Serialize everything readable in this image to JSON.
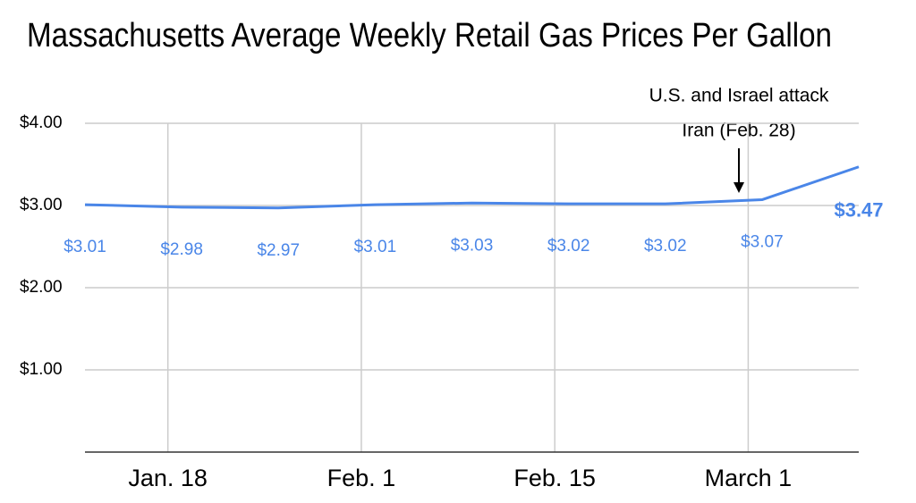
{
  "chart_data": {
    "type": "line",
    "title": "Massachusetts Average Weekly Retail Gas Prices Per Gallon",
    "annotation": [
      "U.S. and Israel attack",
      "Iran (Feb. 28)"
    ],
    "x": [
      12,
      19,
      26,
      33,
      40,
      47,
      54,
      61,
      68
    ],
    "values": [
      3.01,
      2.98,
      2.97,
      3.01,
      3.03,
      3.02,
      3.02,
      3.07,
      3.47
    ],
    "value_labels": [
      "$3.01",
      "$2.98",
      "$2.97",
      "$3.01",
      "$3.03",
      "$3.02",
      "$3.02",
      "$3.07",
      "$3.47"
    ],
    "color": "#4a86e8",
    "xlim": [
      12,
      68
    ],
    "xticks": [
      {
        "value": 18,
        "label": "Jan. 18"
      },
      {
        "value": 32,
        "label": "Feb. 1"
      },
      {
        "value": 46,
        "label": "Feb. 15"
      },
      {
        "value": 60,
        "label": "March 1"
      }
    ],
    "ylim": [
      0,
      4
    ],
    "yticks": [
      {
        "value": 1,
        "label": "$1.00"
      },
      {
        "value": 2,
        "label": "$2.00"
      },
      {
        "value": 3,
        "label": "$3.00"
      },
      {
        "value": 4,
        "label": "$4.00"
      }
    ],
    "grid": true
  }
}
